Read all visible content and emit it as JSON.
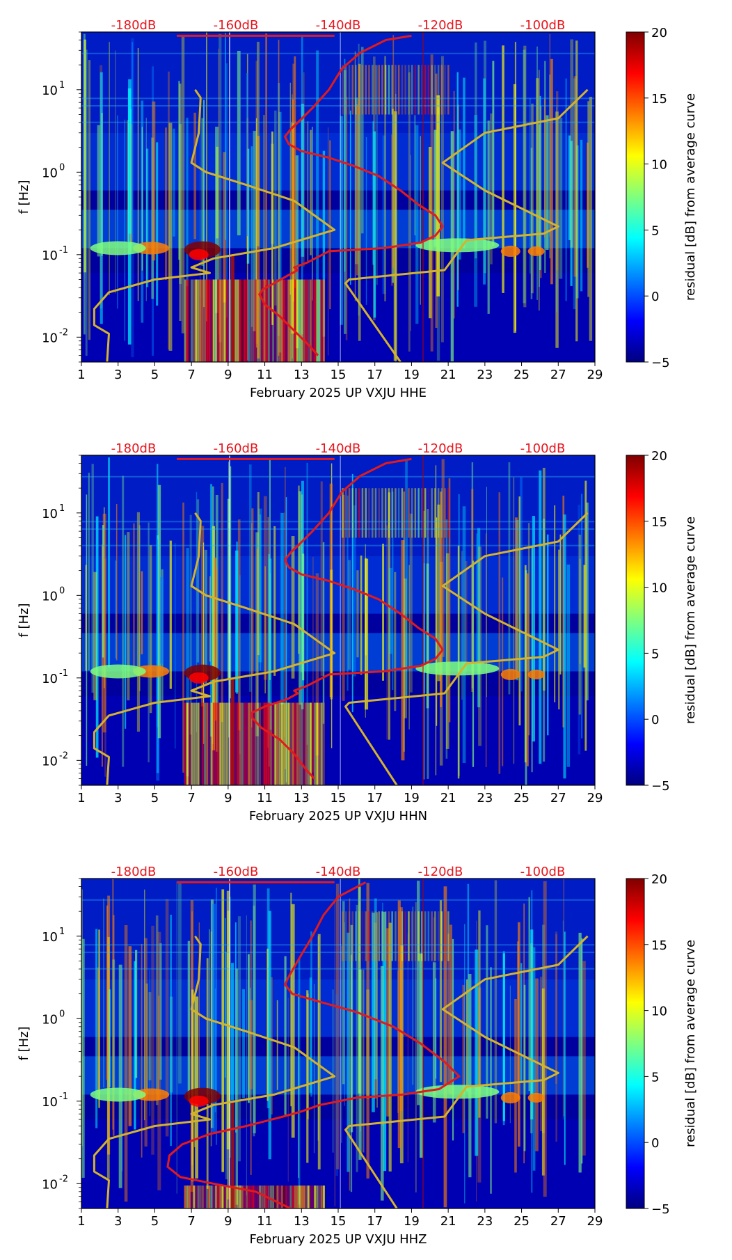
{
  "colors": {
    "db_label": "#e8141c",
    "red_curve": "#e31a1c",
    "gold_curve": "#d4b32c",
    "axis": "#000000"
  },
  "colormap": [
    "#00007f",
    "#0000ff",
    "#007fff",
    "#00ffff",
    "#7fff7f",
    "#ffff00",
    "#ff7f00",
    "#ff0000",
    "#7f0000"
  ],
  "chart_data": [
    {
      "type": "heatmap",
      "title": "February 2025 UP VXJU  HHE",
      "xlabel": "February 2025 UP VXJU  HHE",
      "ylabel": "f [Hz]",
      "x_ticks": [
        "1",
        "3",
        "5",
        "7",
        "9",
        "11",
        "13",
        "15",
        "17",
        "19",
        "21",
        "23",
        "25",
        "27",
        "29"
      ],
      "xlim": [
        1,
        29
      ],
      "y_ticks": [
        {
          "label": "10",
          "exp": "-2",
          "value": 0.01
        },
        {
          "label": "10",
          "exp": "-1",
          "value": 0.1
        },
        {
          "label": "10",
          "exp": "0",
          "value": 1
        },
        {
          "label": "10",
          "exp": "1",
          "value": 10
        }
      ],
      "ylim": [
        0.005,
        50
      ],
      "db_scale_labels": [
        "-180dB",
        "-160dB",
        "-140dB",
        "-120dB",
        "-100dB"
      ],
      "colorbar": {
        "label": "residual [dB] from average curve",
        "ticks": [
          "20",
          "15",
          "10",
          "5",
          "0",
          "−5"
        ],
        "range": [
          -5,
          20
        ]
      },
      "red_curve_x_day": [
        19.0,
        17.6,
        16.2,
        15.2,
        14.5,
        13.6,
        12.9,
        12.4,
        12.1,
        12.3,
        13.0,
        14.5,
        15.8,
        17.2,
        18.4,
        19.4,
        20.3,
        20.7,
        20.3,
        19.5,
        17.5,
        14.5,
        13.3,
        12.6,
        12.8,
        12.2,
        11.5,
        10.9,
        10.7,
        11.0,
        11.8,
        12.6,
        13.4,
        13.9
      ],
      "red_curve_f_hz": [
        45,
        40,
        28,
        18,
        10,
        6,
        4.2,
        3.3,
        2.7,
        2.2,
        1.8,
        1.5,
        1.2,
        0.9,
        0.6,
        0.4,
        0.3,
        0.22,
        0.17,
        0.14,
        0.12,
        0.11,
        0.08,
        0.07,
        0.065,
        0.055,
        0.045,
        0.038,
        0.033,
        0.025,
        0.018,
        0.012,
        0.008,
        0.006
      ],
      "gold_curve_x_day": [
        7.2,
        7.5,
        7.4,
        7.0,
        7.8,
        10.0,
        12.6,
        14.8,
        11.5,
        8.2,
        7.0,
        8.0,
        5.0,
        2.5,
        1.7,
        1.7,
        2.5,
        2.4
      ],
      "gold_curve_f_hz": [
        10,
        8,
        3,
        1.3,
        1.0,
        0.7,
        0.45,
        0.2,
        0.12,
        0.09,
        0.07,
        0.06,
        0.05,
        0.035,
        0.022,
        0.014,
        0.011,
        0.005
      ],
      "gold_curve2_x_day": [
        28.6,
        27.0,
        23.0,
        20.7,
        23.0,
        27.0,
        26.2,
        22.0,
        20.8,
        15.6,
        15.4,
        18.4
      ],
      "gold_curve2_f_hz": [
        10,
        4.5,
        3,
        1.3,
        0.6,
        0.22,
        0.18,
        0.15,
        0.065,
        0.05,
        0.045,
        0.005
      ]
    },
    {
      "type": "heatmap",
      "title": "February 2025 UP VXJU  HHN",
      "xlabel": "February 2025 UP VXJU  HHN",
      "ylabel": "f [Hz]",
      "x_ticks": [
        "1",
        "3",
        "5",
        "7",
        "9",
        "11",
        "13",
        "15",
        "17",
        "19",
        "21",
        "23",
        "25",
        "27",
        "29"
      ],
      "xlim": [
        1,
        29
      ],
      "y_ticks": [
        {
          "label": "10",
          "exp": "-2",
          "value": 0.01
        },
        {
          "label": "10",
          "exp": "-1",
          "value": 0.1
        },
        {
          "label": "10",
          "exp": "0",
          "value": 1
        },
        {
          "label": "10",
          "exp": "1",
          "value": 10
        }
      ],
      "ylim": [
        0.005,
        50
      ],
      "db_scale_labels": [
        "-180dB",
        "-160dB",
        "-140dB",
        "-120dB",
        "-100dB"
      ],
      "colorbar": {
        "label": "residual [dB] from average curve",
        "ticks": [
          "20",
          "15",
          "10",
          "5",
          "0",
          "−5"
        ],
        "range": [
          -5,
          20
        ]
      },
      "red_curve_x_day": [
        19.0,
        17.6,
        16.2,
        15.2,
        14.5,
        13.6,
        12.9,
        12.4,
        12.1,
        12.3,
        13.0,
        14.5,
        15.8,
        17.2,
        18.4,
        19.4,
        20.3,
        20.7,
        20.3,
        19.5,
        17.5,
        14.5,
        13.3,
        12.6,
        12.8,
        12.2,
        11.0,
        10.3,
        10.3,
        10.8,
        11.8,
        12.6,
        13.2,
        13.7
      ],
      "red_curve_f_hz": [
        45,
        40,
        28,
        18,
        10,
        6,
        4.2,
        3.3,
        2.7,
        2.2,
        1.8,
        1.5,
        1.2,
        0.9,
        0.6,
        0.4,
        0.3,
        0.22,
        0.17,
        0.14,
        0.12,
        0.11,
        0.08,
        0.07,
        0.065,
        0.055,
        0.045,
        0.038,
        0.033,
        0.025,
        0.018,
        0.012,
        0.008,
        0.006
      ],
      "gold_curve_x_day": [
        7.2,
        7.5,
        7.4,
        7.0,
        7.8,
        10.0,
        12.6,
        14.8,
        11.5,
        8.2,
        7.0,
        8.0,
        5.0,
        2.5,
        1.7,
        1.7,
        2.5,
        2.4
      ],
      "gold_curve_f_hz": [
        10,
        8,
        3,
        1.3,
        1.0,
        0.7,
        0.45,
        0.2,
        0.12,
        0.09,
        0.07,
        0.06,
        0.05,
        0.035,
        0.022,
        0.014,
        0.011,
        0.005
      ],
      "gold_curve2_x_day": [
        28.6,
        27.0,
        23.0,
        20.7,
        23.0,
        27.0,
        26.2,
        22.0,
        20.8,
        15.6,
        15.4,
        18.2
      ],
      "gold_curve2_f_hz": [
        10,
        4.5,
        3,
        1.3,
        0.6,
        0.22,
        0.18,
        0.15,
        0.065,
        0.05,
        0.045,
        0.005
      ]
    },
    {
      "type": "heatmap",
      "title": "February 2025 UP VXJU  HHZ",
      "xlabel": "February 2025 UP VXJU  HHZ",
      "ylabel": "f [Hz]",
      "x_ticks": [
        "1",
        "3",
        "5",
        "7",
        "9",
        "11",
        "13",
        "15",
        "17",
        "19",
        "21",
        "23",
        "25",
        "27",
        "29"
      ],
      "xlim": [
        1,
        29
      ],
      "y_ticks": [
        {
          "label": "10",
          "exp": "-2",
          "value": 0.01
        },
        {
          "label": "10",
          "exp": "-1",
          "value": 0.1
        },
        {
          "label": "10",
          "exp": "0",
          "value": 1
        },
        {
          "label": "10",
          "exp": "1",
          "value": 10
        }
      ],
      "ylim": [
        0.005,
        50
      ],
      "db_scale_labels": [
        "-180dB",
        "-160dB",
        "-140dB",
        "-120dB",
        "-100dB"
      ],
      "colorbar": {
        "label": "residual [dB] from average curve",
        "ticks": [
          "20",
          "15",
          "10",
          "5",
          "0",
          "−5"
        ],
        "range": [
          -5,
          20
        ]
      },
      "red_curve_x_day": [
        16.5,
        15.0,
        14.2,
        13.6,
        13.0,
        12.6,
        12.3,
        12.1,
        12.5,
        14.0,
        16.0,
        18.0,
        19.5,
        20.8,
        21.6,
        20.5,
        18.5,
        16.0,
        14.0,
        13.0,
        12.0,
        10.0,
        8.0,
        6.5,
        5.8,
        5.7,
        6.4,
        8.2,
        10.5,
        12.4
      ],
      "red_curve_f_hz": [
        45,
        30,
        18,
        10,
        6,
        4.2,
        3.2,
        2.6,
        2.0,
        1.6,
        1.2,
        0.8,
        0.5,
        0.3,
        0.2,
        0.14,
        0.12,
        0.11,
        0.09,
        0.075,
        0.065,
        0.05,
        0.04,
        0.03,
        0.022,
        0.016,
        0.012,
        0.01,
        0.008,
        0.005
      ],
      "gold_curve_x_day": [
        7.2,
        7.5,
        7.4,
        7.0,
        7.8,
        10.0,
        12.6,
        14.8,
        11.5,
        8.2,
        7.0,
        8.0,
        5.0,
        2.5,
        1.7,
        1.7,
        2.5,
        2.4
      ],
      "gold_curve_f_hz": [
        10,
        8,
        3,
        1.3,
        1.0,
        0.7,
        0.45,
        0.2,
        0.12,
        0.09,
        0.07,
        0.06,
        0.05,
        0.035,
        0.022,
        0.014,
        0.011,
        0.005
      ],
      "gold_curve2_x_day": [
        28.6,
        27.0,
        23.0,
        20.7,
        23.0,
        27.0,
        26.2,
        22.0,
        20.8,
        15.6,
        15.4,
        18.2
      ],
      "gold_curve2_f_hz": [
        10,
        4.5,
        3,
        1.3,
        0.6,
        0.22,
        0.18,
        0.15,
        0.065,
        0.05,
        0.045,
        0.005
      ]
    }
  ]
}
